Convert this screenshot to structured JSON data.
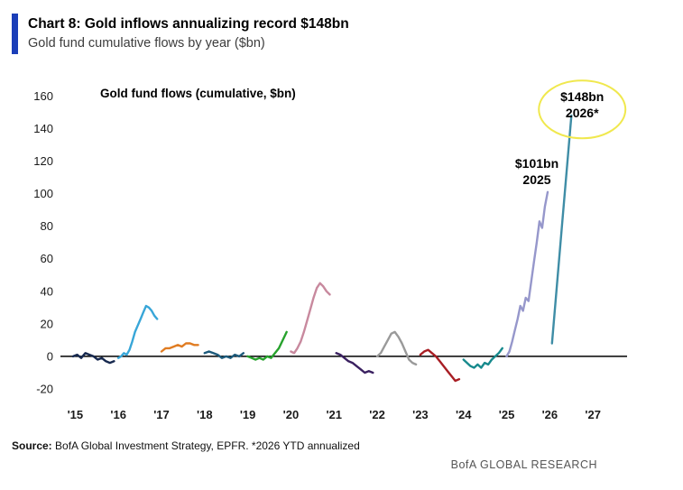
{
  "header": {
    "title": "Chart 8: Gold inflows annualizing record $148bn",
    "subtitle": "Gold fund cumulative flows by year ($bn)",
    "accent_color": "#1b3eb8"
  },
  "footer": {
    "source_label": "Source:",
    "source_text": " BofA Global Investment Strategy, EPFR. *2026 YTD annualized",
    "brand": "BofA GLOBAL RESEARCH"
  },
  "chart_data": {
    "type": "line",
    "title": "Gold fund flows (cumulative, $bn)",
    "ylabel": "",
    "xlabel": "",
    "ylim": [
      -20,
      160
    ],
    "yticks": [
      160,
      140,
      120,
      100,
      80,
      60,
      40,
      20,
      0,
      -20
    ],
    "xtick_labels": [
      "'15",
      "'16",
      "'17",
      "'18",
      "'19",
      "'20",
      "'21",
      "'22",
      "'23",
      "'24",
      "'25",
      "'26",
      "'27"
    ],
    "xtick_years": [
      15,
      16,
      17,
      18,
      19,
      20,
      21,
      22,
      23,
      24,
      25,
      26,
      27
    ],
    "grid": false,
    "legend": "none",
    "zero_line": true,
    "annotations": [
      {
        "lines": [
          "$148bn",
          "2026*"
        ],
        "x": 26.75,
        "y": 154,
        "circled": true,
        "circle_color": "#f0e84e"
      },
      {
        "lines": [
          "$101bn",
          "2025"
        ],
        "x": 25.7,
        "y": 113,
        "circled": false,
        "circle_color": ""
      }
    ],
    "series": [
      {
        "name": "2015",
        "color": "#17294f",
        "x_start": 14.95,
        "x_end": 15.9,
        "values": [
          0,
          1,
          -1,
          2,
          1,
          0,
          -2,
          -1,
          -3,
          -4,
          -3
        ]
      },
      {
        "name": "2016",
        "color": "#38a6d8",
        "x_start": 16.0,
        "x_end": 16.9,
        "values": [
          -1,
          0,
          2,
          1,
          4,
          9,
          15,
          19,
          23,
          27,
          31,
          30,
          28,
          25,
          23
        ]
      },
      {
        "name": "2017",
        "color": "#e07c22",
        "x_start": 17.0,
        "x_end": 17.85,
        "values": [
          3,
          5,
          5,
          6,
          7,
          6,
          8,
          8,
          7,
          7
        ]
      },
      {
        "name": "2018",
        "color": "#1d5b7c",
        "x_start": 18.0,
        "x_end": 18.9,
        "values": [
          2,
          3,
          2,
          1,
          -1,
          0,
          -1,
          1,
          0,
          2
        ]
      },
      {
        "name": "2019",
        "color": "#27a22d",
        "x_start": 19.0,
        "x_end": 19.9,
        "values": [
          0,
          -1,
          -2,
          -1,
          -2,
          0,
          -1,
          2,
          5,
          10,
          15
        ]
      },
      {
        "name": "2020",
        "color": "#c8899e",
        "x_start": 20.0,
        "x_end": 20.9,
        "values": [
          3,
          2,
          5,
          9,
          15,
          22,
          29,
          36,
          42,
          45,
          43,
          40,
          38
        ]
      },
      {
        "name": "2021",
        "color": "#3a2060",
        "x_start": 21.05,
        "x_end": 21.9,
        "values": [
          2,
          1,
          -1,
          -3,
          -4,
          -6,
          -8,
          -10,
          -9,
          -10
        ]
      },
      {
        "name": "2022",
        "color": "#9a9a9a",
        "x_start": 22.0,
        "x_end": 22.9,
        "values": [
          0,
          2,
          6,
          10,
          14,
          15,
          12,
          8,
          3,
          -2,
          -4,
          -5
        ]
      },
      {
        "name": "2023",
        "color": "#a81e24",
        "x_start": 23.0,
        "x_end": 23.9,
        "values": [
          1,
          3,
          4,
          2,
          0,
          -3,
          -6,
          -9,
          -12,
          -15,
          -14
        ]
      },
      {
        "name": "2024",
        "color": "#178a8d",
        "x_start": 24.0,
        "x_end": 24.9,
        "values": [
          -2,
          -4,
          -6,
          -7,
          -5,
          -7,
          -4,
          -5,
          -2,
          0,
          2,
          5
        ]
      },
      {
        "name": "2025",
        "color": "#9697cb",
        "x_start": 25.0,
        "x_end": 25.95,
        "values": [
          0,
          3,
          9,
          16,
          23,
          31,
          28,
          36,
          34,
          46,
          58,
          70,
          83,
          79,
          92,
          101
        ]
      },
      {
        "name": "2026",
        "color": "#3f8da6",
        "x_start": 26.05,
        "x_end": 26.5,
        "values": [
          8,
          78,
          148
        ]
      }
    ]
  }
}
